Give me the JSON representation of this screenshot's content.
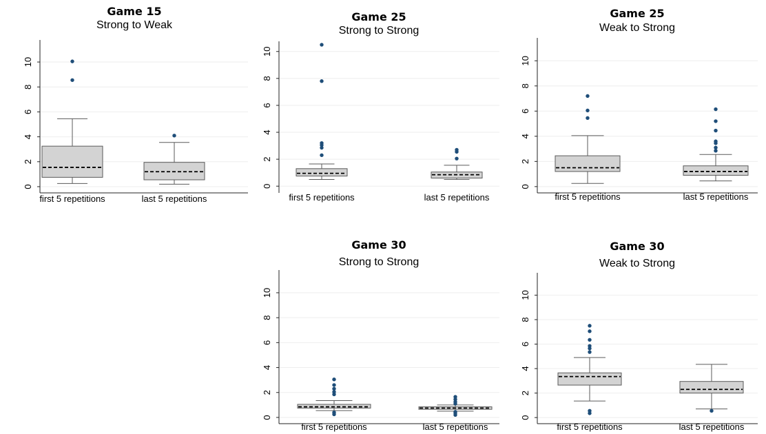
{
  "chart_data": [
    {
      "type": "box",
      "title": "Game 15",
      "subtitle": "Strong to Weak",
      "ylim": [
        0,
        11
      ],
      "yticks": [
        "0",
        "2",
        "4",
        "6",
        "8",
        "10"
      ],
      "categories": [
        "first 5 repetitions",
        "last 5 repetitions"
      ],
      "boxes": [
        {
          "whisker_low": 0.25,
          "q1": 0.75,
          "median": 1.55,
          "q3": 3.25,
          "whisker_high": 5.45,
          "outliers": [
            8.55,
            10.05
          ]
        },
        {
          "whisker_low": 0.2,
          "q1": 0.55,
          "median": 1.2,
          "q3": 1.95,
          "whisker_high": 3.55,
          "outliers": [
            4.1
          ]
        }
      ]
    },
    {
      "type": "box",
      "title": "Game 25",
      "subtitle": "Strong to Strong",
      "ylim": [
        0,
        11
      ],
      "yticks": [
        "0",
        "2",
        "4",
        "6",
        "8",
        "10"
      ],
      "categories": [
        "first 5 repetitions",
        "last 5 repetitions"
      ],
      "boxes": [
        {
          "whisker_low": 0.5,
          "q1": 0.75,
          "median": 0.95,
          "q3": 1.3,
          "whisker_high": 1.65,
          "outliers": [
            2.3,
            2.85,
            3.05,
            3.2,
            7.8,
            10.5
          ]
        },
        {
          "whisker_low": 0.5,
          "q1": 0.6,
          "median": 0.85,
          "q3": 1.05,
          "whisker_high": 1.55,
          "outliers": [
            2.05,
            2.55,
            2.7
          ]
        }
      ]
    },
    {
      "type": "box",
      "title": "Game 25",
      "subtitle": "Weak to Strong",
      "ylim": [
        0,
        11
      ],
      "yticks": [
        "0",
        "2",
        "4",
        "6",
        "8",
        "10"
      ],
      "categories": [
        "first 5 repetitions",
        "last 5 repetitions"
      ],
      "boxes": [
        {
          "whisker_low": 0.25,
          "q1": 1.2,
          "median": 1.5,
          "q3": 2.45,
          "whisker_high": 4.05,
          "outliers": [
            5.45,
            6.05,
            7.2
          ]
        },
        {
          "whisker_low": 0.45,
          "q1": 0.9,
          "median": 1.2,
          "q3": 1.65,
          "whisker_high": 2.55,
          "outliers": [
            2.85,
            3.1,
            3.45,
            3.6,
            4.45,
            5.2,
            6.15
          ]
        }
      ]
    },
    {
      "type": "box",
      "title": "Game 30",
      "subtitle": "Strong to Strong",
      "ylim": [
        0,
        11
      ],
      "yticks": [
        "0",
        "2",
        "4",
        "6",
        "8",
        "10"
      ],
      "categories": [
        "first 5 repetitions",
        "last 5 repetitions"
      ],
      "boxes": [
        {
          "whisker_low": 0.55,
          "q1": 0.75,
          "median": 0.85,
          "q3": 1.05,
          "whisker_high": 1.35,
          "outliers": [
            0.25,
            0.4,
            1.85,
            2.05,
            2.3,
            2.6,
            3.05
          ]
        },
        {
          "whisker_low": 0.5,
          "q1": 0.65,
          "median": 0.75,
          "q3": 0.85,
          "whisker_high": 1.0,
          "outliers": [
            0.2,
            0.35,
            0.45,
            1.1,
            1.25,
            1.45,
            1.65
          ]
        }
      ]
    },
    {
      "type": "box",
      "title": "Game 30",
      "subtitle": "Weak to Strong",
      "ylim": [
        0,
        11
      ],
      "yticks": [
        "0",
        "2",
        "4",
        "6",
        "8",
        "10"
      ],
      "categories": [
        "first 5 repetitions",
        "last 5 repetitions"
      ],
      "boxes": [
        {
          "whisker_low": 1.35,
          "q1": 2.65,
          "median": 3.35,
          "q3": 3.65,
          "whisker_high": 4.9,
          "outliers": [
            0.35,
            0.55,
            5.35,
            5.65,
            5.85,
            6.35,
            7.05,
            7.5
          ]
        },
        {
          "whisker_low": 0.7,
          "q1": 2.0,
          "median": 2.3,
          "q3": 2.95,
          "whisker_high": 4.35,
          "outliers": [
            0.55
          ]
        }
      ]
    }
  ],
  "colors": {
    "box_fill": "#d3d3d3",
    "box_stroke": "#5a5a5a",
    "median_line": "#000000",
    "outlier": "#1f4e79",
    "grid": "#eeeeee",
    "axis": "#222222"
  }
}
